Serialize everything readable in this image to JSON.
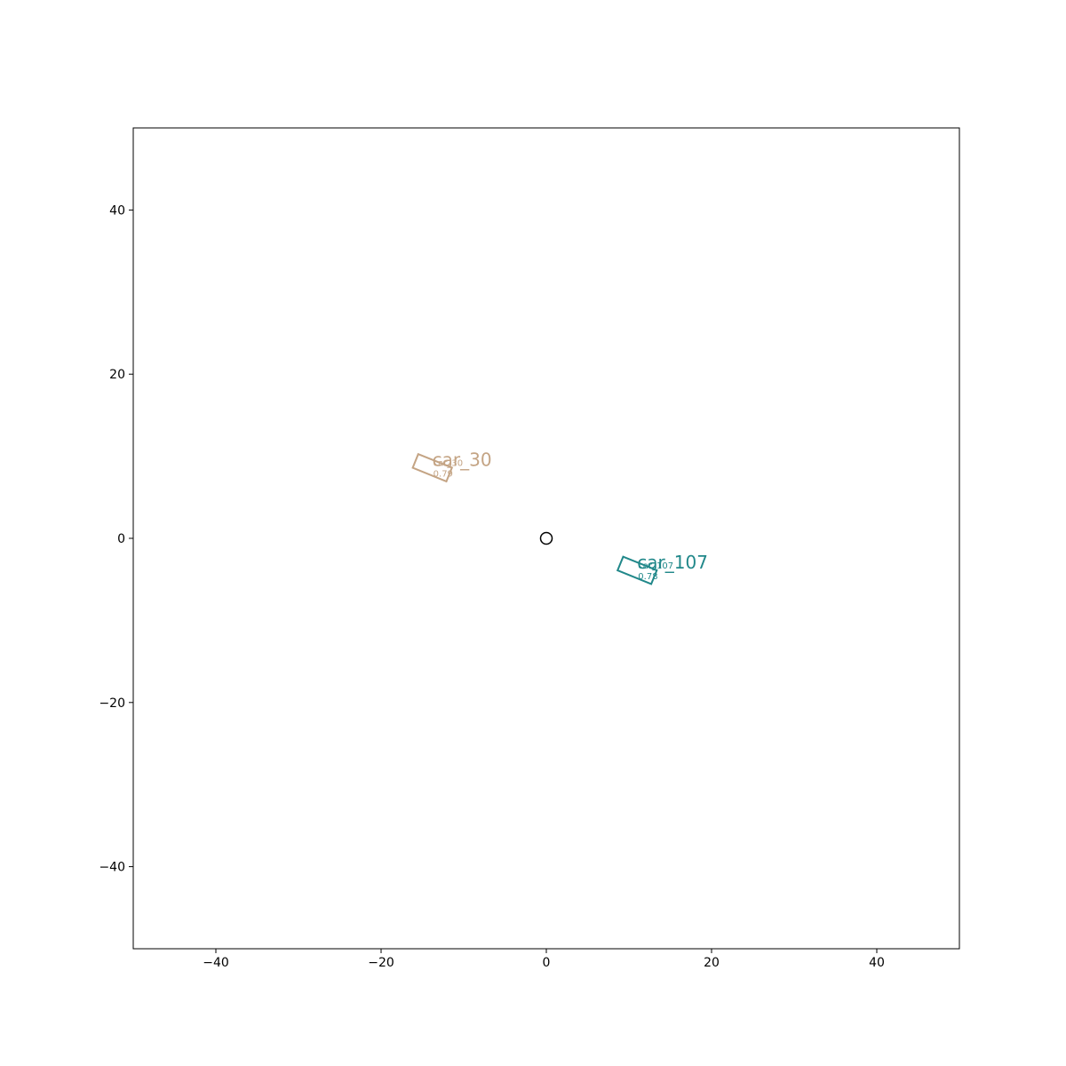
{
  "chart_data": {
    "type": "scatter",
    "title": "",
    "xlabel": "",
    "ylabel": "",
    "xlim": [
      -50,
      50
    ],
    "ylim": [
      -50,
      50
    ],
    "grid": false,
    "x_ticks": [
      -40,
      -20,
      0,
      20,
      40
    ],
    "y_ticks": [
      -40,
      -20,
      0,
      20,
      40
    ],
    "x_tick_labels": [
      "−40",
      "−20",
      "0",
      "20",
      "40"
    ],
    "y_tick_labels": [
      "−40",
      "−20",
      "0",
      "20",
      "40"
    ],
    "ego": {
      "x": 0,
      "y": 0,
      "marker": "circle"
    },
    "objects": [
      {
        "label": "car_30",
        "sub_label": "car_30",
        "score": "0.79",
        "x": -13.8,
        "y": 8.6,
        "length": 4.4,
        "width": 1.8,
        "heading_deg": -22,
        "color": "#c4a484"
      },
      {
        "label": "car_107",
        "sub_label": "car_107",
        "score": "0.78",
        "x": 11.0,
        "y": -3.9,
        "length": 4.4,
        "width": 1.8,
        "heading_deg": -22,
        "color": "#21888a"
      }
    ]
  }
}
